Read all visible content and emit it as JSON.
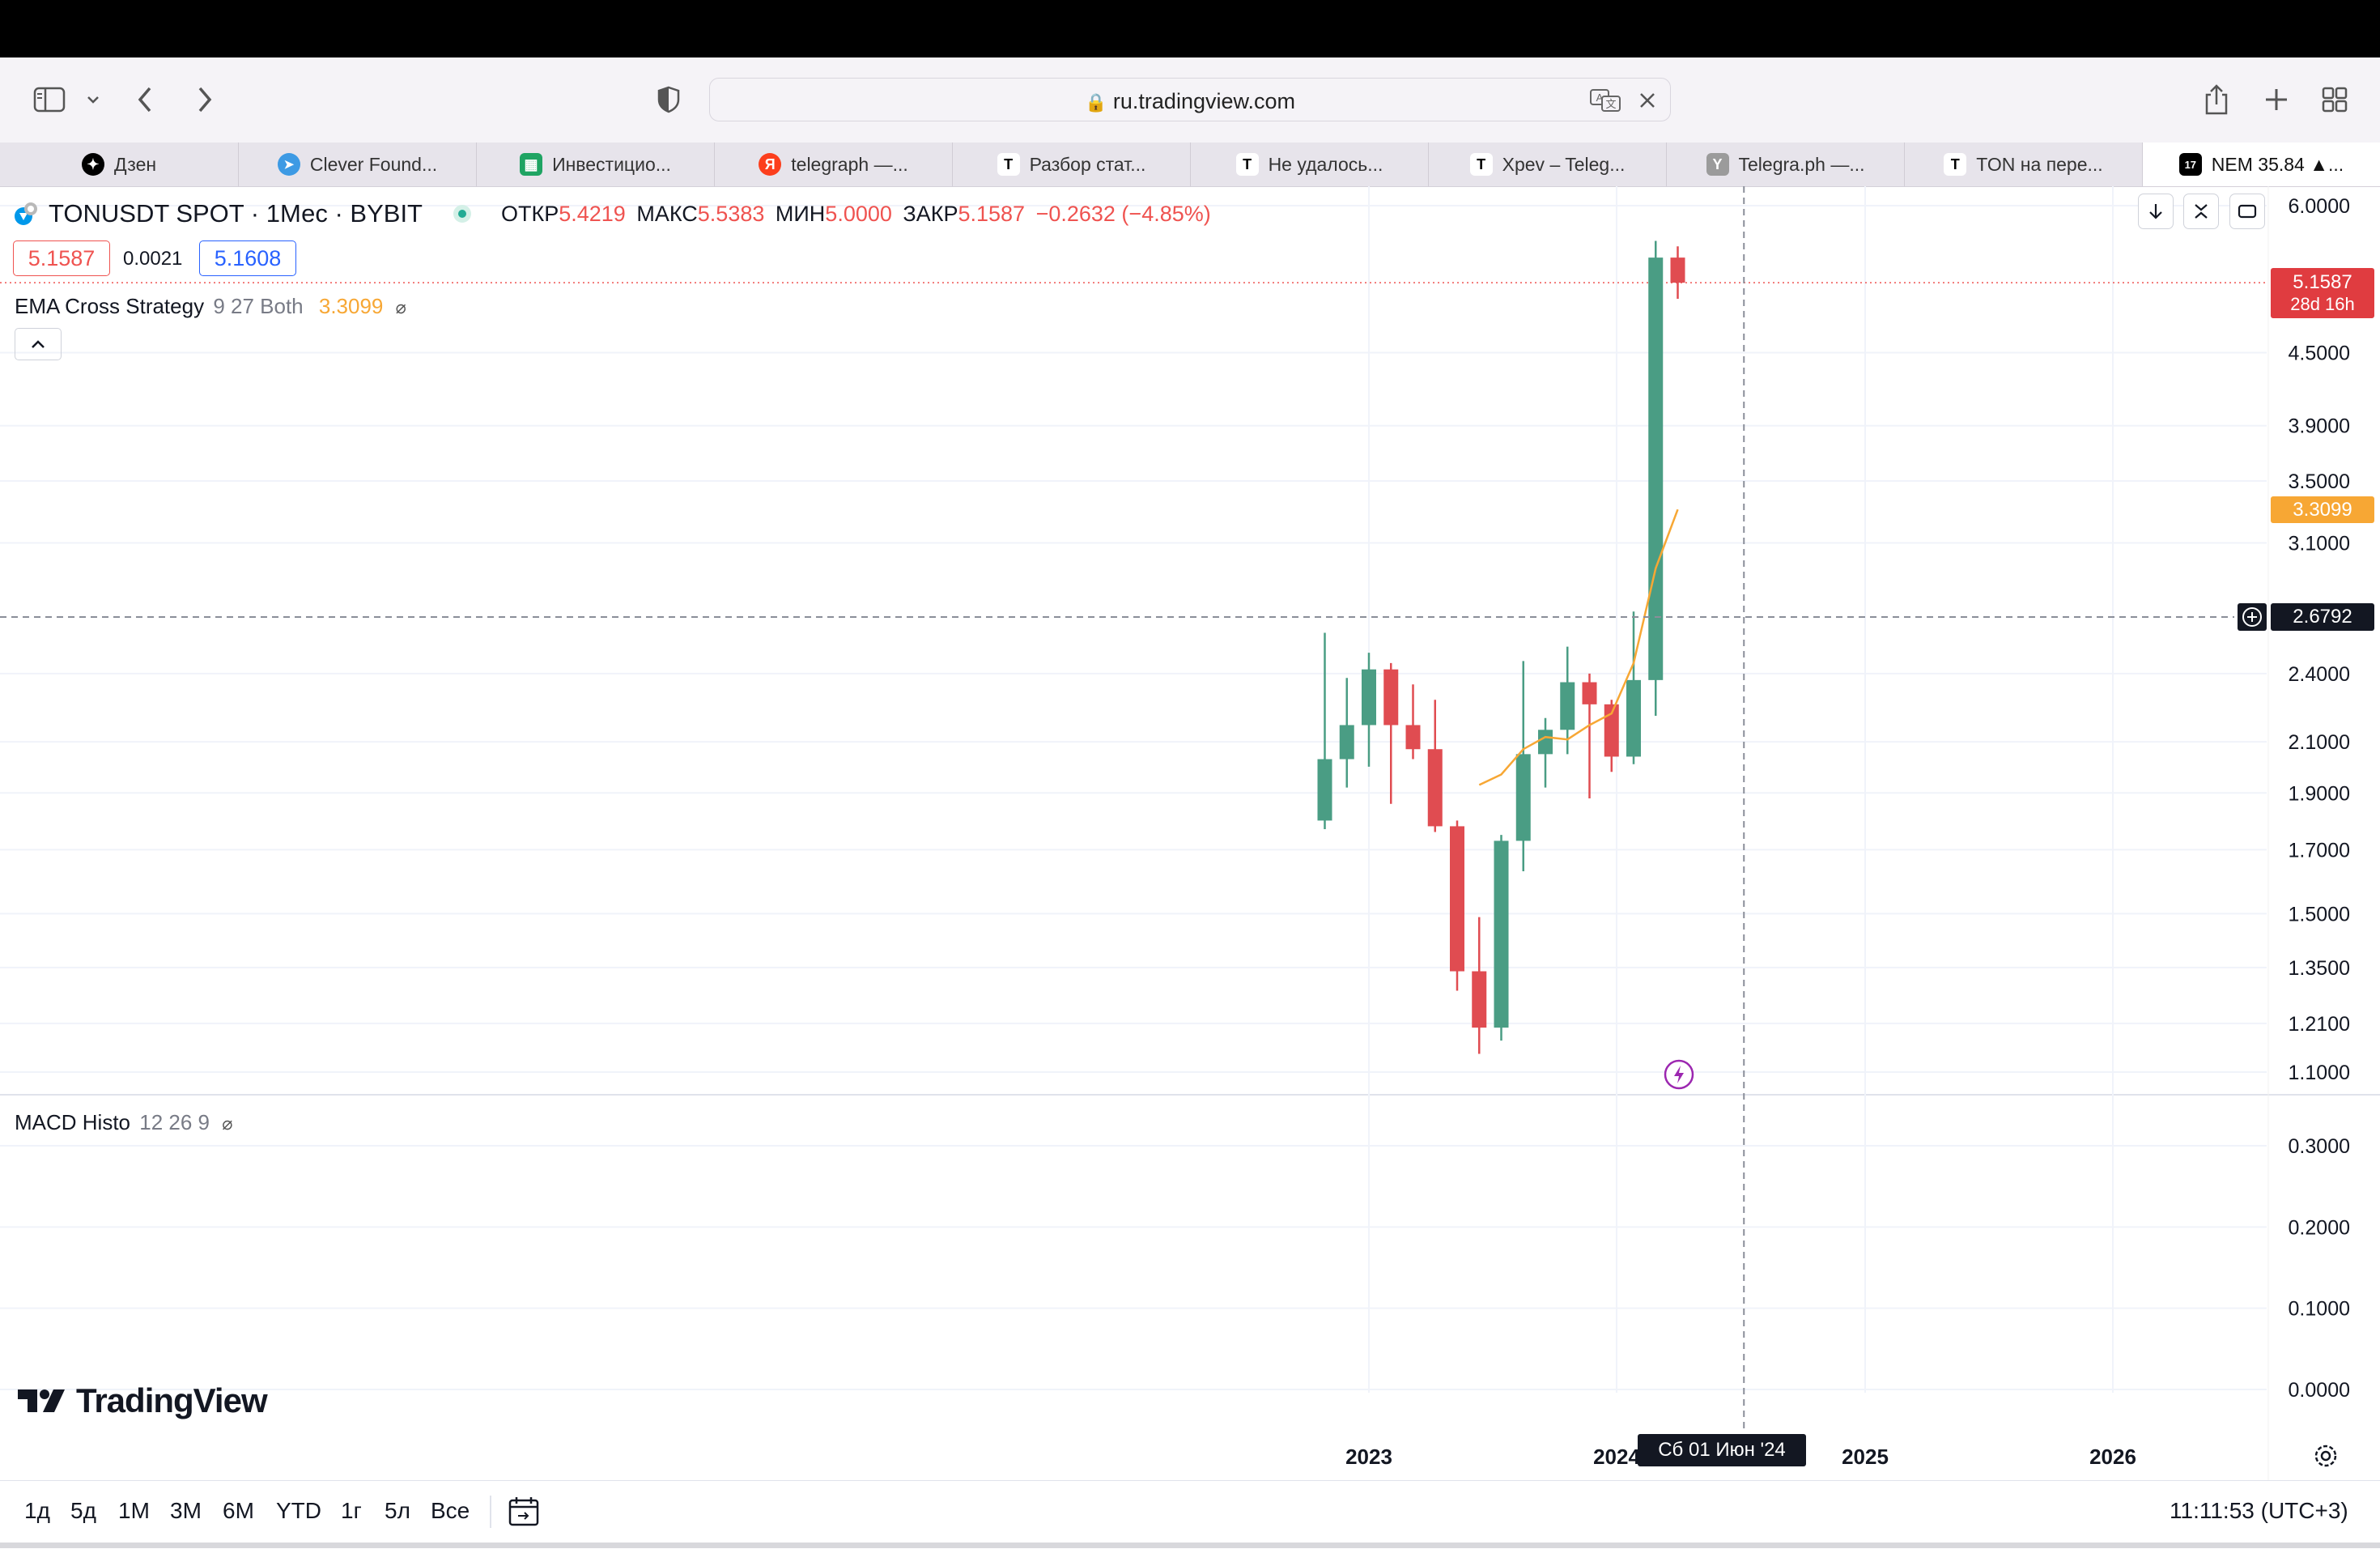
{
  "browser": {
    "url": "ru.tradingview.com",
    "tabs": [
      {
        "label": "Дзен",
        "icon": "zen-icon",
        "color": "#000000",
        "glyph": "✦"
      },
      {
        "label": "Clever Found...",
        "icon": "telegram-icon",
        "color": "#3d9ae4",
        "glyph": "➤"
      },
      {
        "label": "Инвестицио...",
        "icon": "sheets-icon",
        "color": "#1fa463",
        "glyph": "▦"
      },
      {
        "label": "telegraph —...",
        "icon": "yandex-icon",
        "color": "#fc3f1d",
        "glyph": "Я"
      },
      {
        "label": "Разбор стат...",
        "icon": "telegraph-icon",
        "color": "#ffffff",
        "glyph": "T"
      },
      {
        "label": "Не удалось...",
        "icon": "telegraph-icon",
        "color": "#ffffff",
        "glyph": "T"
      },
      {
        "label": "Xpev – Teleg...",
        "icon": "telegraph-icon",
        "color": "#ffffff",
        "glyph": "T"
      },
      {
        "label": "Telegra.ph —...",
        "icon": "ycombinator-icon",
        "color": "#9b9b9b",
        "glyph": "Y"
      },
      {
        "label": "TON на пере...",
        "icon": "telegraph-icon",
        "color": "#ffffff",
        "glyph": "T"
      },
      {
        "label": "NEM 35.84 ▲...",
        "icon": "tradingview-icon",
        "color": "#000000",
        "glyph": "17"
      }
    ]
  },
  "symbol": {
    "title": "TONUSDT SPOT · 1Мес · BYBIT",
    "open_label": "ОТКР",
    "open": "5.4219",
    "high_label": "МАКС",
    "high": "5.5383",
    "low_label": "МИН",
    "low": "5.0000",
    "close_label": "ЗАКР",
    "close": "5.1587",
    "change": "−0.2632 (−4.85%)"
  },
  "trade": {
    "sell": "5.1587",
    "spread": "0.0021",
    "buy": "5.1608"
  },
  "indicators": {
    "ema": {
      "name": "EMA Cross Strategy",
      "params": "9 27 Both",
      "value": "3.3099"
    },
    "macd": {
      "name": "MACD Histo",
      "params": "12 26 9"
    }
  },
  "price_tags": {
    "last_price": "5.1587",
    "countdown": "28d 16h",
    "ema": "3.3099",
    "crosshair": "2.6792"
  },
  "crosshair_date": "Сб 01 Июн '24",
  "brand": "TradingView",
  "ranges": [
    "1д",
    "5д",
    "1M",
    "3M",
    "6M",
    "YTD",
    "1г",
    "5л",
    "Все"
  ],
  "clock": "11:11:53 (UTC+3)",
  "colors": {
    "up": "#26a69a",
    "down": "#ef5350",
    "ema": "#f7a734",
    "upbody": "#4a9d84",
    "downbody": "#e04c51"
  },
  "chart_data": {
    "type": "candlestick",
    "timeframe": "1M",
    "y_scale": "log",
    "y_ticks": [
      6.0,
      4.5,
      3.9,
      3.5,
      3.1,
      2.4,
      2.1,
      1.9,
      1.7,
      1.5,
      1.35,
      1.21,
      1.1
    ],
    "y_tick_labels": [
      "6.0000",
      "4.5000",
      "3.9000",
      "3.5000",
      "3.1000",
      "2.4000",
      "2.1000",
      "1.9000",
      "1.7000",
      "1.5000",
      "1.3500",
      "1.2100",
      "1.1000"
    ],
    "x_ticks": [
      "2023",
      "2024",
      "2025",
      "2026"
    ],
    "candles": [
      {
        "date": "2022-11",
        "o": 1.8,
        "h": 2.6,
        "l": 1.77,
        "c": 2.03
      },
      {
        "date": "2022-12",
        "o": 2.03,
        "h": 2.38,
        "l": 1.92,
        "c": 2.17
      },
      {
        "date": "2023-01",
        "o": 2.17,
        "h": 2.5,
        "l": 2.0,
        "c": 2.42
      },
      {
        "date": "2023-02",
        "o": 2.42,
        "h": 2.45,
        "l": 1.86,
        "c": 2.17
      },
      {
        "date": "2023-03",
        "o": 2.17,
        "h": 2.35,
        "l": 2.03,
        "c": 2.07
      },
      {
        "date": "2023-04",
        "o": 2.07,
        "h": 2.28,
        "l": 1.76,
        "c": 1.78
      },
      {
        "date": "2023-05",
        "o": 1.78,
        "h": 1.8,
        "l": 1.29,
        "c": 1.34
      },
      {
        "date": "2023-06",
        "o": 1.34,
        "h": 1.49,
        "l": 1.14,
        "c": 1.2
      },
      {
        "date": "2023-07",
        "o": 1.2,
        "h": 1.75,
        "l": 1.17,
        "c": 1.73
      },
      {
        "date": "2023-08",
        "o": 1.73,
        "h": 2.46,
        "l": 1.63,
        "c": 2.05
      },
      {
        "date": "2023-09",
        "o": 2.05,
        "h": 2.2,
        "l": 1.92,
        "c": 2.15
      },
      {
        "date": "2023-10",
        "o": 2.15,
        "h": 2.53,
        "l": 2.05,
        "c": 2.36
      },
      {
        "date": "2023-11",
        "o": 2.36,
        "h": 2.4,
        "l": 1.88,
        "c": 2.26
      },
      {
        "date": "2023-12",
        "o": 2.26,
        "h": 2.28,
        "l": 1.98,
        "c": 2.04
      },
      {
        "date": "2024-01",
        "o": 2.04,
        "h": 2.71,
        "l": 2.01,
        "c": 2.37
      },
      {
        "date": "2024-02",
        "o": 2.37,
        "h": 5.6,
        "l": 2.21,
        "c": 5.42
      },
      {
        "date": "2024-03",
        "o": 5.42,
        "h": 5.54,
        "l": 5.0,
        "c": 5.16
      }
    ],
    "ema_line": [
      1.93,
      1.97,
      2.07,
      2.12,
      2.11,
      2.17,
      2.22,
      2.45,
      2.95,
      3.31
    ],
    "macd_y_ticks": [
      0.3,
      0.2,
      0.1,
      0.0
    ],
    "macd_y_tick_labels": [
      "0.3000",
      "0.2000",
      "0.1000",
      "0.0000"
    ]
  }
}
